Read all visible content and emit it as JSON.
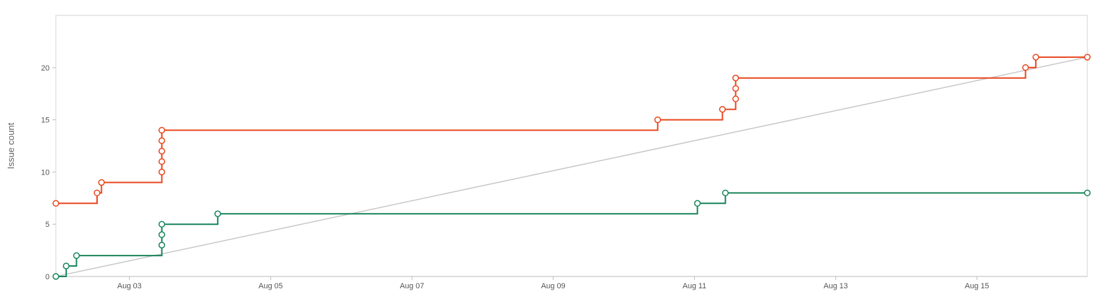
{
  "chart_data": {
    "type": "line",
    "step": "after",
    "title": "",
    "xlabel": "",
    "ylabel": "Issue count",
    "x_axis": {
      "type": "date",
      "min": "2022-08-01T23:00",
      "max": "2022-08-16T13:30",
      "ticks": [
        {
          "value": "2022-08-03",
          "label": "Aug 03"
        },
        {
          "value": "2022-08-05",
          "label": "Aug 05"
        },
        {
          "value": "2022-08-07",
          "label": "Aug 07"
        },
        {
          "value": "2022-08-09",
          "label": "Aug 09"
        },
        {
          "value": "2022-08-11",
          "label": "Aug 11"
        },
        {
          "value": "2022-08-13",
          "label": "Aug 13"
        },
        {
          "value": "2022-08-15",
          "label": "Aug 15"
        }
      ]
    },
    "y_axis": {
      "min": 0,
      "max": 25,
      "ticks": [
        0,
        5,
        10,
        15,
        20
      ]
    },
    "grid": false,
    "legend": "none",
    "series": [
      {
        "color": "#e8461c",
        "points": [
          {
            "x": "2022-08-01T23:00",
            "y": 7
          },
          {
            "x": "2022-08-02T13:00",
            "y": 8
          },
          {
            "x": "2022-08-02T14:30",
            "y": 9
          },
          {
            "x": "2022-08-03T11:00",
            "y": 10
          },
          {
            "x": "2022-08-03T11:00",
            "y": 11
          },
          {
            "x": "2022-08-03T11:00",
            "y": 12
          },
          {
            "x": "2022-08-03T11:00",
            "y": 13
          },
          {
            "x": "2022-08-03T11:00",
            "y": 14
          },
          {
            "x": "2022-08-10T11:30",
            "y": 15
          },
          {
            "x": "2022-08-11T09:30",
            "y": 16
          },
          {
            "x": "2022-08-11T14:00",
            "y": 17
          },
          {
            "x": "2022-08-11T14:00",
            "y": 18
          },
          {
            "x": "2022-08-11T14:00",
            "y": 19
          },
          {
            "x": "2022-08-15T16:30",
            "y": 20
          },
          {
            "x": "2022-08-15T20:00",
            "y": 21
          },
          {
            "x": "2022-08-16T13:30",
            "y": 21
          }
        ]
      },
      {
        "color": "#17845a",
        "points": [
          {
            "x": "2022-08-01T23:00",
            "y": 0
          },
          {
            "x": "2022-08-02T02:30",
            "y": 1
          },
          {
            "x": "2022-08-02T06:00",
            "y": 2
          },
          {
            "x": "2022-08-03T11:00",
            "y": 3
          },
          {
            "x": "2022-08-03T11:00",
            "y": 4
          },
          {
            "x": "2022-08-03T11:00",
            "y": 5
          },
          {
            "x": "2022-08-04T06:00",
            "y": 6
          },
          {
            "x": "2022-08-11T01:00",
            "y": 7
          },
          {
            "x": "2022-08-11T10:30",
            "y": 8
          },
          {
            "x": "2022-08-16T13:30",
            "y": 8
          }
        ]
      },
      {
        "color": "#c8c8c8",
        "markers": false,
        "step": "none",
        "points": [
          {
            "x": "2022-08-01T23:00",
            "y": 0
          },
          {
            "x": "2022-08-16T13:30",
            "y": 21
          }
        ]
      }
    ]
  }
}
